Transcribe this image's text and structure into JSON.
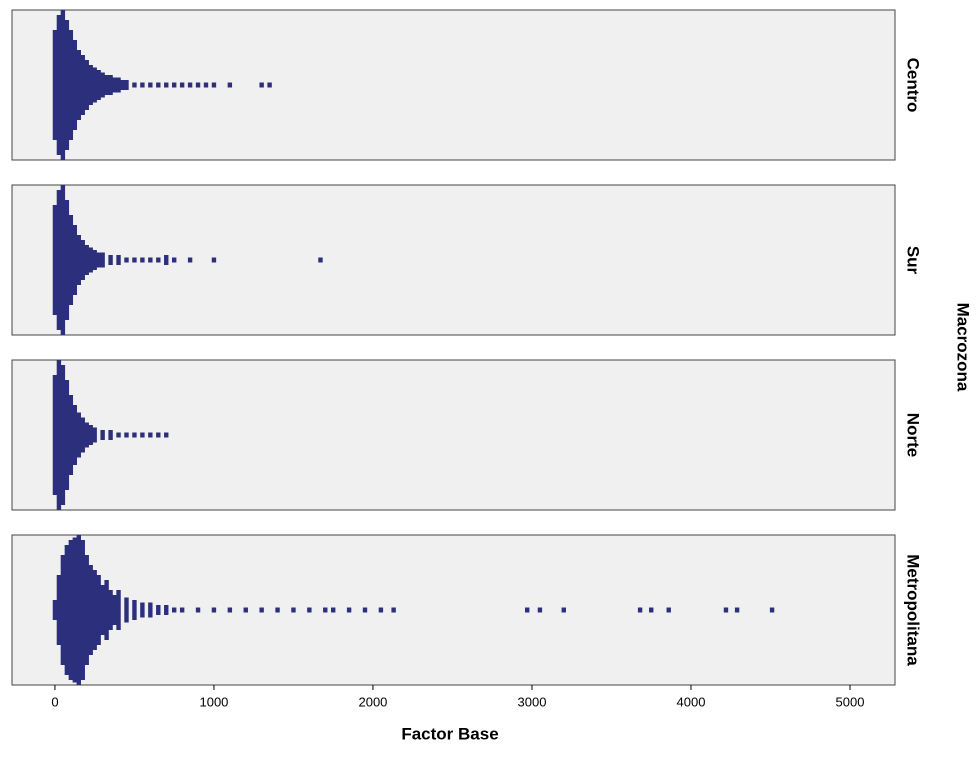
{
  "chart_data": {
    "type": "dot",
    "x_axis_label": "Factor Base",
    "facet_label": "Macrozona",
    "color": "#2b2f7c",
    "xlim": [
      -270,
      5283
    ],
    "xticks": [
      0,
      1000,
      2000,
      3000,
      4000,
      5000
    ],
    "panels": [
      {
        "name": "Centro",
        "x": [
          0,
          25,
          50,
          75,
          100,
          125,
          150,
          175,
          200,
          225,
          250,
          275,
          300,
          325,
          350,
          375,
          400,
          425,
          450,
          500,
          550,
          600,
          650,
          700,
          750,
          800,
          850,
          900,
          950,
          1000,
          1100,
          1300,
          1350
        ],
        "values": [
          22,
          28,
          30,
          26,
          22,
          18,
          14,
          12,
          10,
          8,
          7,
          6,
          5,
          4,
          4,
          3,
          3,
          2,
          2,
          1,
          1,
          1,
          1,
          1,
          1,
          1,
          1,
          1,
          1,
          1,
          1,
          1,
          1
        ]
      },
      {
        "name": "Sur",
        "x": [
          0,
          25,
          50,
          75,
          100,
          125,
          150,
          175,
          200,
          225,
          250,
          275,
          300,
          350,
          400,
          450,
          500,
          550,
          600,
          650,
          700,
          750,
          850,
          1000,
          1670
        ],
        "values": [
          22,
          28,
          30,
          24,
          18,
          14,
          10,
          8,
          6,
          5,
          4,
          3,
          3,
          2,
          2,
          1,
          1,
          1,
          1,
          1,
          2,
          1,
          1,
          1,
          1
        ]
      },
      {
        "name": "Norte",
        "x": [
          0,
          25,
          50,
          75,
          100,
          125,
          150,
          175,
          200,
          225,
          250,
          300,
          350,
          400,
          450,
          500,
          550,
          600,
          650,
          700
        ],
        "values": [
          24,
          30,
          28,
          22,
          16,
          12,
          9,
          7,
          5,
          4,
          3,
          2,
          2,
          1,
          1,
          1,
          1,
          1,
          1,
          1
        ]
      },
      {
        "name": "Metropolitana",
        "x": [
          0,
          25,
          50,
          75,
          100,
          125,
          150,
          175,
          200,
          225,
          250,
          275,
          300,
          325,
          350,
          375,
          400,
          450,
          500,
          550,
          600,
          650,
          700,
          750,
          800,
          900,
          1000,
          1100,
          1200,
          1300,
          1400,
          1500,
          1600,
          1700,
          1750,
          1850,
          1950,
          2050,
          2130,
          2970,
          3050,
          3200,
          3680,
          3750,
          3860,
          4220,
          4290,
          4510
        ],
        "values": [
          4,
          14,
          22,
          26,
          28,
          29,
          30,
          28,
          22,
          18,
          16,
          14,
          10,
          12,
          8,
          6,
          8,
          5,
          4,
          3,
          3,
          2,
          2,
          1,
          1,
          1,
          1,
          1,
          1,
          1,
          1,
          1,
          1,
          1,
          1,
          1,
          1,
          1,
          1,
          1,
          1,
          1,
          1,
          1,
          1,
          1,
          1,
          1
        ]
      }
    ]
  }
}
